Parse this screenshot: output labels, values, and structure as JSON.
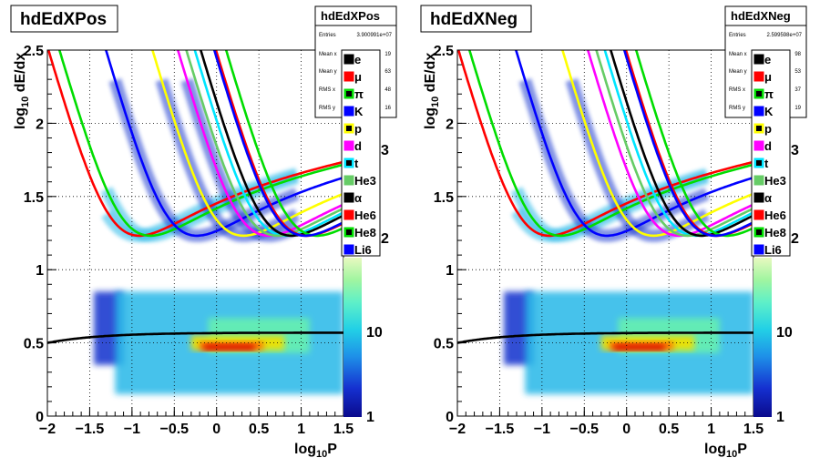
{
  "chart_data": [
    {
      "type": "heatmap",
      "title": "hdEdXPos",
      "xlabel_main": "log",
      "xlabel_sub": "10",
      "xlabel_tail": "P",
      "ylabel_main": "log",
      "ylabel_sub": "10",
      "ylabel_tail": " dE/dx",
      "xlim": [
        -2,
        1.5
      ],
      "ylim": [
        0,
        2.5
      ],
      "x_ticks": [
        "−2",
        "−1.5",
        "−1",
        "−0.5",
        "0",
        "0.5",
        "1",
        "1.5"
      ],
      "y_ticks": [
        "0",
        "0.5",
        "1",
        "1.5",
        "2",
        "2.5"
      ],
      "z_ticks": [
        "1",
        "10"
      ],
      "z_scale": "log",
      "grid": true,
      "stats": {
        "title": "hdEdXPos",
        "rows": [
          {
            "label": "Entries",
            "value": "3.900991e+07"
          },
          {
            "label": "Mean x",
            "value": "19"
          },
          {
            "label": "Mean y",
            "value": "63"
          },
          {
            "label": "RMS x",
            "value": "48"
          },
          {
            "label": "RMS y",
            "value": "16"
          }
        ]
      },
      "side_marks": [
        "3",
        "2"
      ]
    },
    {
      "type": "heatmap",
      "title": "hdEdXNeg",
      "xlabel_main": "log",
      "xlabel_sub": "10",
      "xlabel_tail": "P",
      "ylabel_main": "log",
      "ylabel_sub": "10",
      "ylabel_tail": " dE/dx",
      "xlim": [
        -2,
        1.5
      ],
      "ylim": [
        0,
        2.5
      ],
      "x_ticks": [
        "−2",
        "−1.5",
        "−1",
        "−0.5",
        "0",
        "0.5",
        "1",
        "1.5"
      ],
      "y_ticks": [
        "0",
        "0.5",
        "1",
        "1.5",
        "2",
        "2.5"
      ],
      "z_ticks": [
        "1",
        "10"
      ],
      "z_scale": "log",
      "grid": true,
      "stats": {
        "title": "hdEdXNeg",
        "rows": [
          {
            "label": "Entries",
            "value": "2.599598e+07"
          },
          {
            "label": "Mean x",
            "value": "98"
          },
          {
            "label": "Mean y",
            "value": "53"
          },
          {
            "label": "RMS x",
            "value": "37"
          },
          {
            "label": "RMS y",
            "value": "19"
          }
        ]
      },
      "side_marks": [
        "3",
        "2"
      ]
    }
  ],
  "legend": [
    {
      "name": "e",
      "color": "#000000",
      "min_x": -2.7
    },
    {
      "name": "μ",
      "color": "#ff0000",
      "min_x": -0.68
    },
    {
      "name": "π",
      "color": "#00dd00",
      "min_x": -0.55
    },
    {
      "name": "K",
      "color": "#0000ff",
      "min_x": 0.0
    },
    {
      "name": "p",
      "color": "#ffff00",
      "min_x": 0.55
    },
    {
      "name": "d",
      "color": "#ff00ff",
      "min_x": 0.85
    },
    {
      "name": "t",
      "color": "#00e5ff",
      "min_x": 1.05
    },
    {
      "name": "He3",
      "color": "#66cc66",
      "min_x": 0.95
    },
    {
      "name": "α",
      "color": "#000000",
      "min_x": 1.12
    },
    {
      "name": "He6",
      "color": "#ff0000",
      "min_x": 1.3
    },
    {
      "name": "He8",
      "color": "#00dd00",
      "min_x": 1.42
    },
    {
      "name": "Li6",
      "color": "#0000ff",
      "min_x": 1.28
    }
  ]
}
